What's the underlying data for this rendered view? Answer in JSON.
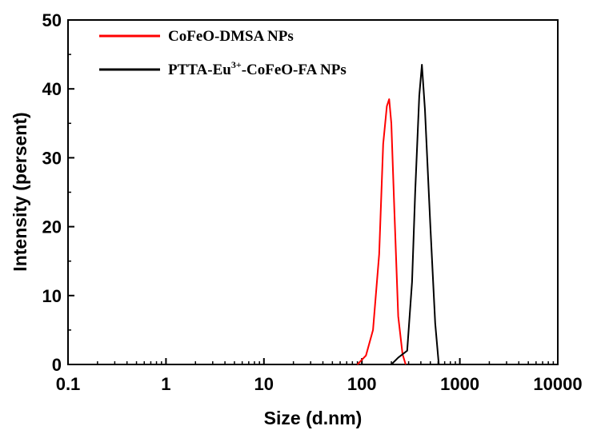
{
  "chart_data": {
    "type": "line",
    "title": "",
    "xlabel": "Size (d.nm)",
    "ylabel": "Intensity (persent)",
    "x_scale": "log",
    "xlim": [
      0.1,
      10000
    ],
    "ylim": [
      0,
      50
    ],
    "x_ticks": [
      0.1,
      1,
      10,
      100,
      1000,
      10000
    ],
    "x_tick_labels": [
      "0.1",
      "1",
      "10",
      "100",
      "1000",
      "10000"
    ],
    "y_ticks": [
      0,
      10,
      20,
      30,
      40,
      50
    ],
    "y_tick_labels": [
      "0",
      "10",
      "20",
      "30",
      "40",
      "50"
    ],
    "grid": false,
    "legend_position": "top-left",
    "series": [
      {
        "name": "CoFeO-DMSA NPs",
        "legend_main": "CoFeO-DMSA NPs",
        "legend_sup": "",
        "legend_tail": "",
        "color": "#ff0000",
        "x": [
          90,
          110,
          130,
          150,
          165,
          180,
          190,
          200,
          215,
          235,
          260,
          280
        ],
        "y": [
          0,
          1.3,
          5,
          16,
          32,
          37.5,
          38.5,
          35,
          22,
          7,
          1.5,
          0
        ]
      },
      {
        "name": "PTTA-Eu3+-CoFeO-FA NPs",
        "legend_main": "PTTA-Eu",
        "legend_sup": "3+",
        "legend_tail": "-CoFeO-FA NPs",
        "color": "#000000",
        "x": [
          200,
          235,
          290,
          325,
          350,
          385,
          410,
          440,
          500,
          560,
          610
        ],
        "y": [
          0,
          1,
          2,
          12,
          25,
          39,
          43.5,
          37,
          20,
          6,
          0
        ]
      }
    ]
  }
}
